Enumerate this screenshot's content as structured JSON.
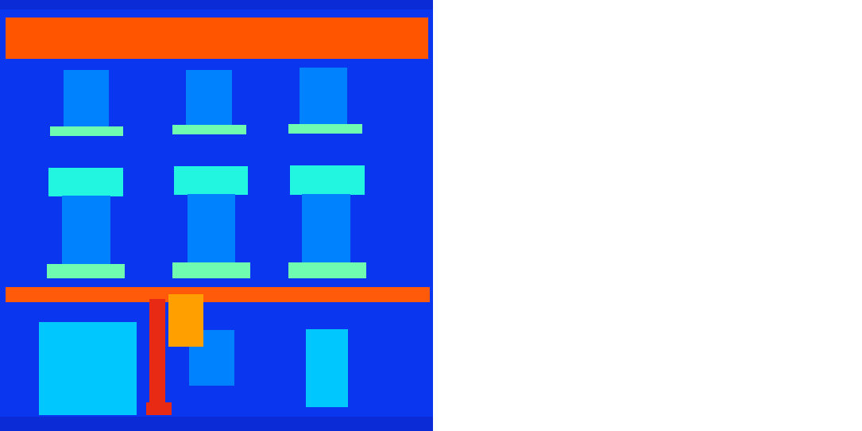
{
  "scene": {
    "type": "segmentation-style building facade",
    "colors": {
      "background": "#0a36f0",
      "frame_band": "#0a2bd6",
      "cornice": "#ff5500",
      "ledge": "#ff5a0a",
      "window": "#0082ff",
      "sill": "#6ffcb0",
      "lintel": "#22f5e0",
      "door": "#00c8ff",
      "pole": "#e82a14",
      "sign": "#ffa000",
      "page": "#ffffff"
    }
  }
}
